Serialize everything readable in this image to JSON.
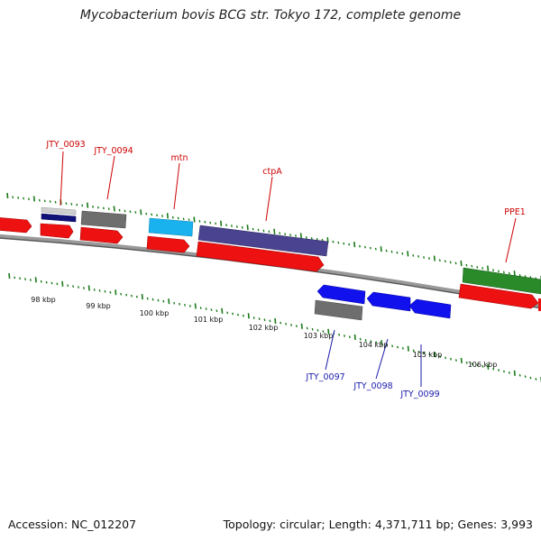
{
  "title": "Mycobacterium bovis BCG str. Tokyo 172, complete genome",
  "footer": {
    "accession": "Accession: NC_012207",
    "summary": "Topology: circular; Length: 4,371,711 bp; Genes: 3,993"
  },
  "colors": {
    "forward_label": "#cc0000",
    "reverse_label": "#1a1aaa",
    "backbone": "#7a7a7a",
    "tick": "#1a7a1a",
    "cds": "#ee1111",
    "grey_gene": "#6e6e6e",
    "navy_gene": "#11117a",
    "cyan_gene": "#1ab2ee",
    "slate_gene": "#4a4490",
    "blue_gene": "#1111ee",
    "green_gene": "#2a8a2a"
  },
  "scale_labels": [
    "98 kbp",
    "99 kbp",
    "100 kbp",
    "101 kbp",
    "102 kbp",
    "103 kbp",
    "104 kbp",
    "105 kbp",
    "106 kbp"
  ],
  "forward_gene_labels": [
    "JTY_0093",
    "JTY_0094",
    "mtn",
    "ctpA",
    "PPE1"
  ],
  "reverse_gene_labels": [
    "JTY_0097",
    "JTY_0098",
    "JTY_0099"
  ]
}
